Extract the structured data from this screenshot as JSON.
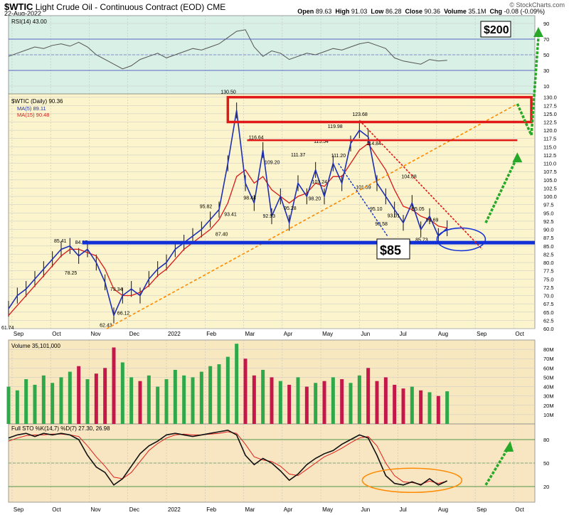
{
  "header": {
    "symbol": "$WTIC",
    "description": "Light Crude Oil - Continuous Contract (EOD)",
    "exchange": "CME",
    "date": "22-Aug-2022",
    "copyright": "© StockCharts.com",
    "quote": {
      "open_label": "Open",
      "open": "89.63",
      "high_label": "High",
      "high": "91.03",
      "low_label": "Low",
      "low": "86.28",
      "close_label": "Close",
      "close": "90.36",
      "volume_label": "Volume",
      "volume": "35.1M",
      "chg_label": "Chg",
      "chg": "-0.08 (-0.09%)"
    }
  },
  "x_axis": {
    "months": [
      "Sep",
      "Oct",
      "Nov",
      "Dec",
      "2022",
      "Feb",
      "Mar",
      "Apr",
      "May",
      "Jun",
      "Jul",
      "Aug",
      "Sep",
      "Oct"
    ]
  },
  "colors": {
    "price_bg": "#fbf4cc",
    "rsi_bg": "#d8f0e6",
    "vol_bg": "#f8e8c0",
    "sto_bg": "#f8e6c2",
    "ma5": "#1f2fb4",
    "ma15": "#d81a1a",
    "support": "#1130d8",
    "resistance": "#e01818",
    "trend_orange": "#ff8a00",
    "arrow_green": "#28a828",
    "vol_up": "#2ea84a",
    "vol_down": "#c4184a"
  },
  "annotations": {
    "target_label": "$200",
    "support_label": "$85"
  },
  "chart_data": [
    {
      "type": "line",
      "name_panel": "rsi",
      "legend": "RSI(14) 43.00",
      "ylim": [
        0,
        100
      ],
      "yticks": [
        10,
        30,
        50,
        70,
        90
      ],
      "x": [
        0,
        5,
        10,
        15,
        20,
        25,
        30,
        35,
        40,
        45,
        50,
        55,
        60,
        65,
        70,
        75,
        80,
        85,
        90,
        95,
        100,
        105,
        110,
        115,
        120,
        125,
        130,
        135,
        140,
        145,
        150,
        155,
        160,
        165,
        170,
        175,
        180,
        185,
        190,
        195,
        200,
        205,
        210,
        215,
        220,
        225,
        230,
        235,
        240,
        245,
        250
      ],
      "values": [
        48,
        52,
        56,
        60,
        58,
        62,
        64,
        61,
        66,
        60,
        50,
        44,
        38,
        32,
        36,
        44,
        48,
        52,
        46,
        50,
        54,
        58,
        56,
        60,
        64,
        72,
        80,
        82,
        60,
        48,
        55,
        52,
        44,
        48,
        52,
        50,
        54,
        58,
        56,
        60,
        64,
        66,
        62,
        58,
        46,
        42,
        40,
        38,
        44,
        42,
        43
      ]
    },
    {
      "type": "line",
      "name_panel": "price",
      "legend_title": "$WTIC (Daily) 90.36",
      "legend_ma5": "MA(5) 89.11",
      "legend_ma15": "MA(15) 90.48",
      "ylim": [
        60,
        131
      ],
      "yticks": [
        60.0,
        62.5,
        65.0,
        67.5,
        70.0,
        72.5,
        75.0,
        77.5,
        80.0,
        82.5,
        85.0,
        87.5,
        90.0,
        92.5,
        95.0,
        97.5,
        100.0,
        102.5,
        105.0,
        107.5,
        110.0,
        112.5,
        115.0,
        117.5,
        120.0,
        122.5,
        125.0,
        127.5,
        130.0
      ],
      "x": [
        0,
        5,
        10,
        15,
        20,
        25,
        30,
        35,
        40,
        45,
        50,
        55,
        60,
        65,
        70,
        75,
        80,
        85,
        90,
        95,
        100,
        105,
        110,
        115,
        120,
        125,
        130,
        135,
        140,
        145,
        150,
        155,
        160,
        165,
        170,
        175,
        180,
        185,
        190,
        195,
        200,
        205,
        210,
        215,
        220,
        225,
        230,
        235,
        240,
        245,
        250
      ],
      "close": [
        66,
        70,
        72,
        75,
        78,
        81,
        84,
        85,
        82,
        84,
        80,
        74,
        64,
        70,
        72,
        70,
        75,
        78,
        80,
        84,
        86,
        88,
        90,
        93,
        96,
        110,
        126,
        104,
        98,
        114,
        94,
        100,
        92,
        104,
        100,
        108,
        100,
        110,
        104,
        116,
        120,
        118,
        104,
        100,
        96,
        92,
        98,
        90,
        94,
        88,
        90.36
      ],
      "ma15": [
        64,
        67,
        70,
        73,
        76,
        79,
        82,
        84,
        84,
        83,
        82,
        78,
        72,
        70,
        70,
        71,
        73,
        76,
        78,
        81,
        84,
        86,
        88,
        90,
        93,
        98,
        106,
        108,
        104,
        106,
        102,
        100,
        98,
        100,
        101,
        104,
        103,
        106,
        106,
        110,
        114,
        116,
        112,
        108,
        102,
        97,
        96,
        94,
        93,
        91,
        90.48
      ],
      "price_labels": [
        {
          "x": 0,
          "y": 61.74,
          "text": "61.74"
        },
        {
          "x": 30,
          "y": 85.41,
          "text": "85.41"
        },
        {
          "x": 42,
          "y": 84.97,
          "text": "84.97"
        },
        {
          "x": 36,
          "y": 78.25,
          "text": "78.25"
        },
        {
          "x": 56,
          "y": 62.43,
          "text": "62.43"
        },
        {
          "x": 62,
          "y": 73.34,
          "text": "73.34"
        },
        {
          "x": 66,
          "y": 66.12,
          "text": "66.12"
        },
        {
          "x": 113,
          "y": 95.82,
          "text": "95.82"
        },
        {
          "x": 125,
          "y": 130.5,
          "text": "130.50"
        },
        {
          "x": 127,
          "y": 93.41,
          "text": "93.41"
        },
        {
          "x": 122,
          "y": 87.4,
          "text": "87.40"
        },
        {
          "x": 141,
          "y": 116.64,
          "text": "116.64"
        },
        {
          "x": 138,
          "y": 98.44,
          "text": "98.44"
        },
        {
          "x": 150,
          "y": 109.2,
          "text": "109.20"
        },
        {
          "x": 149,
          "y": 92.93,
          "text": "92.93"
        },
        {
          "x": 165,
          "y": 111.37,
          "text": "111.37"
        },
        {
          "x": 161,
          "y": 95.28,
          "text": "95.28"
        },
        {
          "x": 178,
          "y": 115.54,
          "text": "115.54"
        },
        {
          "x": 177,
          "y": 103.24,
          "text": "103.24"
        },
        {
          "x": 175,
          "y": 98.2,
          "text": "98.20"
        },
        {
          "x": 186,
          "y": 119.98,
          "text": "119.98"
        },
        {
          "x": 188,
          "y": 111.2,
          "text": "111.20"
        },
        {
          "x": 200,
          "y": 123.68,
          "text": "123.68"
        },
        {
          "x": 208,
          "y": 114.84,
          "text": "114.84"
        },
        {
          "x": 202,
          "y": 101.59,
          "text": "101.59"
        },
        {
          "x": 210,
          "y": 95.1,
          "text": "95.10"
        },
        {
          "x": 213,
          "y": 90.58,
          "text": "90.58"
        },
        {
          "x": 220,
          "y": 93.01,
          "text": "93.01"
        },
        {
          "x": 228,
          "y": 104.88,
          "text": "104.88"
        },
        {
          "x": 234,
          "y": 95.05,
          "text": "95.05"
        },
        {
          "x": 242,
          "y": 91.69,
          "text": "91.69"
        },
        {
          "x": 236,
          "y": 85.73,
          "text": "85.73"
        }
      ]
    },
    {
      "type": "bar",
      "name_panel": "volume",
      "legend": "Volume 35,101,000",
      "ylim": [
        0,
        90
      ],
      "yticks": [
        10,
        20,
        30,
        40,
        50,
        60,
        70,
        80
      ],
      "ytick_labels": [
        "10M",
        "20M",
        "30M",
        "40M",
        "50M",
        "60M",
        "70M",
        "80M"
      ],
      "x": [
        0,
        5,
        10,
        15,
        20,
        25,
        30,
        35,
        40,
        45,
        50,
        55,
        60,
        65,
        70,
        75,
        80,
        85,
        90,
        95,
        100,
        105,
        110,
        115,
        120,
        125,
        130,
        135,
        140,
        145,
        150,
        155,
        160,
        165,
        170,
        175,
        180,
        185,
        190,
        195,
        200,
        205,
        210,
        215,
        220,
        225,
        230,
        235,
        240,
        245,
        250
      ],
      "values": [
        40,
        36,
        48,
        42,
        52,
        44,
        50,
        56,
        62,
        48,
        54,
        60,
        82,
        66,
        50,
        46,
        52,
        40,
        48,
        58,
        52,
        50,
        56,
        62,
        64,
        72,
        86,
        70,
        52,
        58,
        50,
        46,
        42,
        50,
        40,
        44,
        46,
        50,
        48,
        44,
        52,
        60,
        46,
        50,
        42,
        38,
        40,
        36,
        34,
        30,
        35
      ]
    },
    {
      "type": "line",
      "name_panel": "stochastic",
      "legend": "Full STO %K(14,7) %D(7) 27.30, 26.98",
      "ylim": [
        0,
        100
      ],
      "yticks": [
        20,
        50,
        80
      ],
      "x": [
        0,
        5,
        10,
        15,
        20,
        25,
        30,
        35,
        40,
        45,
        50,
        55,
        60,
        65,
        70,
        75,
        80,
        85,
        90,
        95,
        100,
        105,
        110,
        115,
        120,
        125,
        130,
        135,
        140,
        145,
        150,
        155,
        160,
        165,
        170,
        175,
        180,
        185,
        190,
        195,
        200,
        205,
        210,
        215,
        220,
        225,
        230,
        235,
        240,
        245,
        250
      ],
      "k": [
        82,
        86,
        88,
        84,
        88,
        86,
        88,
        86,
        80,
        60,
        45,
        38,
        22,
        30,
        46,
        62,
        72,
        78,
        86,
        88,
        86,
        84,
        86,
        88,
        90,
        92,
        86,
        60,
        48,
        56,
        50,
        40,
        28,
        36,
        48,
        56,
        62,
        66,
        74,
        80,
        86,
        82,
        60,
        34,
        24,
        22,
        26,
        22,
        30,
        22,
        27.3
      ],
      "d": [
        78,
        82,
        85,
        86,
        86,
        87,
        87,
        86,
        84,
        72,
        58,
        46,
        32,
        30,
        38,
        52,
        66,
        75,
        82,
        86,
        87,
        86,
        86,
        87,
        88,
        90,
        88,
        74,
        58,
        54,
        52,
        46,
        36,
        34,
        42,
        50,
        58,
        63,
        69,
        76,
        82,
        84,
        72,
        50,
        34,
        26,
        25,
        23,
        27,
        24,
        26.98
      ]
    }
  ]
}
